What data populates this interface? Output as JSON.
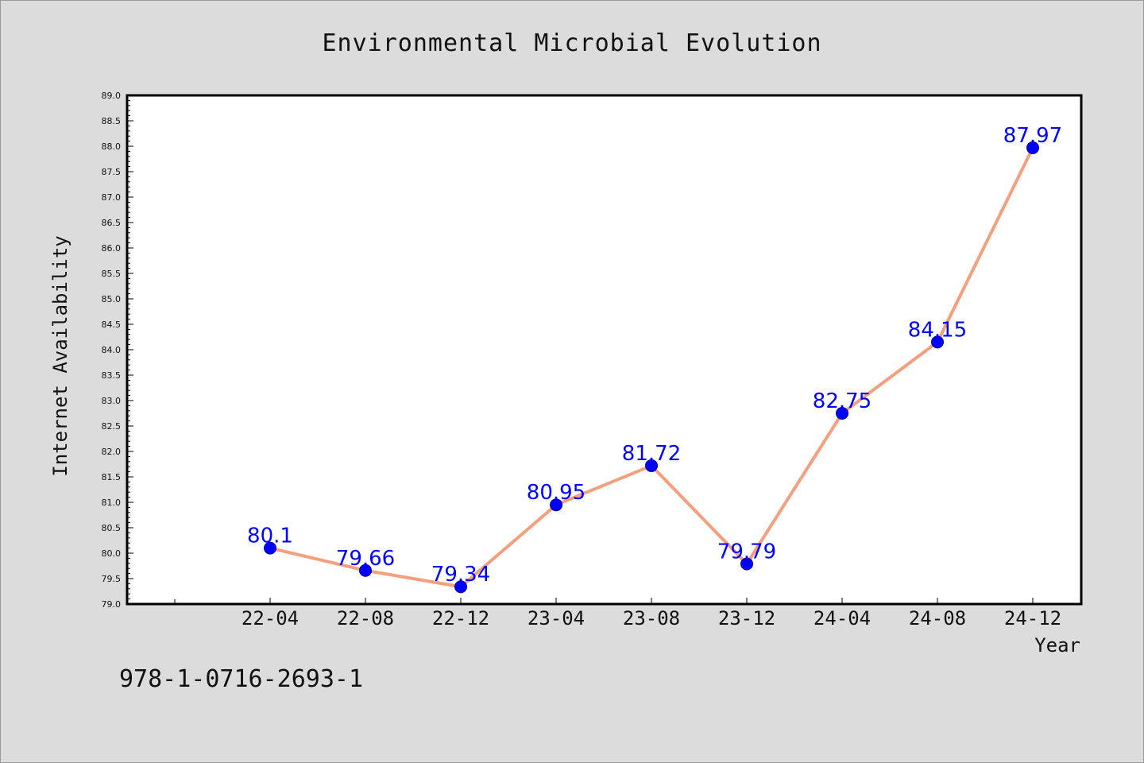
{
  "chart_data": {
    "type": "line",
    "title": "Environmental Microbial Evolution",
    "xlabel": "Year",
    "ylabel": "Internet Availability",
    "categories": [
      "22-04",
      "22-08",
      "22-12",
      "23-04",
      "23-08",
      "23-12",
      "24-04",
      "24-08",
      "24-12"
    ],
    "series": [
      {
        "values": [
          80.1,
          79.66,
          79.34,
          80.95,
          81.72,
          79.79,
          82.75,
          84.15,
          87.97
        ],
        "labels": [
          "80.1",
          "79.66",
          "79.34",
          "80.95",
          "81.72",
          "79.79",
          "82.75",
          "84.15",
          "87.97"
        ],
        "line_color": "#f4a07f",
        "marker_color": "#0000ff"
      }
    ],
    "ylim": [
      79.0,
      89.0
    ],
    "y_ticks": [
      "79.0",
      "79.5",
      "80.0",
      "80.5",
      "81.0",
      "81.5",
      "82.0",
      "82.5",
      "83.0",
      "83.5",
      "84.0",
      "84.5",
      "85.0",
      "85.5",
      "86.0",
      "86.5",
      "87.0",
      "87.5",
      "88.0",
      "88.5",
      "89.0"
    ],
    "grid": false,
    "legend": "none"
  },
  "footnote": "978-1-0716-2693-1",
  "colors": {
    "background": "#dcdcdc",
    "plot_background": "#ffffff",
    "line": "#f4a07f",
    "marker": "#0000ff",
    "data_label": "#0000ff"
  }
}
